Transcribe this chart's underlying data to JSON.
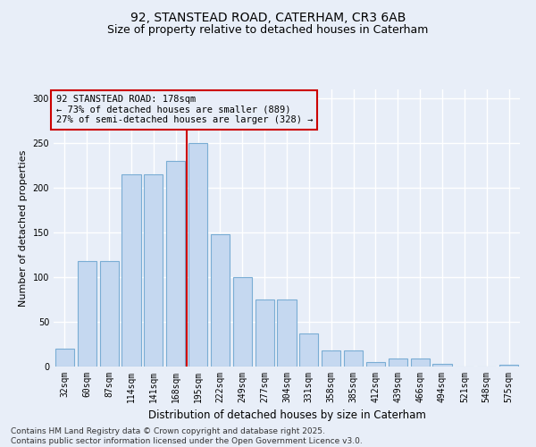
{
  "title": "92, STANSTEAD ROAD, CATERHAM, CR3 6AB",
  "subtitle": "Size of property relative to detached houses in Caterham",
  "xlabel": "Distribution of detached houses by size in Caterham",
  "ylabel": "Number of detached properties",
  "categories": [
    "32sqm",
    "60sqm",
    "87sqm",
    "114sqm",
    "141sqm",
    "168sqm",
    "195sqm",
    "222sqm",
    "249sqm",
    "277sqm",
    "304sqm",
    "331sqm",
    "358sqm",
    "385sqm",
    "412sqm",
    "439sqm",
    "466sqm",
    "494sqm",
    "521sqm",
    "548sqm",
    "575sqm"
  ],
  "values": [
    20,
    118,
    118,
    215,
    215,
    230,
    250,
    148,
    100,
    75,
    75,
    37,
    18,
    18,
    5,
    9,
    9,
    3,
    0,
    0,
    2
  ],
  "bar_color": "#c5d8f0",
  "bar_edge_color": "#7aadd4",
  "vline_color": "#cc0000",
  "vline_x_idx": 5,
  "annotation_text": "92 STANSTEAD ROAD: 178sqm\n← 73% of detached houses are smaller (889)\n27% of semi-detached houses are larger (328) →",
  "annotation_box_edgecolor": "#cc0000",
  "bg_color": "#e8eef8",
  "grid_color": "#ffffff",
  "footer": "Contains HM Land Registry data © Crown copyright and database right 2025.\nContains public sector information licensed under the Open Government Licence v3.0.",
  "ylim": [
    0,
    310
  ],
  "yticks": [
    0,
    50,
    100,
    150,
    200,
    250,
    300
  ],
  "title_fontsize": 10,
  "subtitle_fontsize": 9,
  "xlabel_fontsize": 8.5,
  "ylabel_fontsize": 8,
  "tick_fontsize": 7,
  "footer_fontsize": 6.5,
  "annotation_fontsize": 7.5
}
